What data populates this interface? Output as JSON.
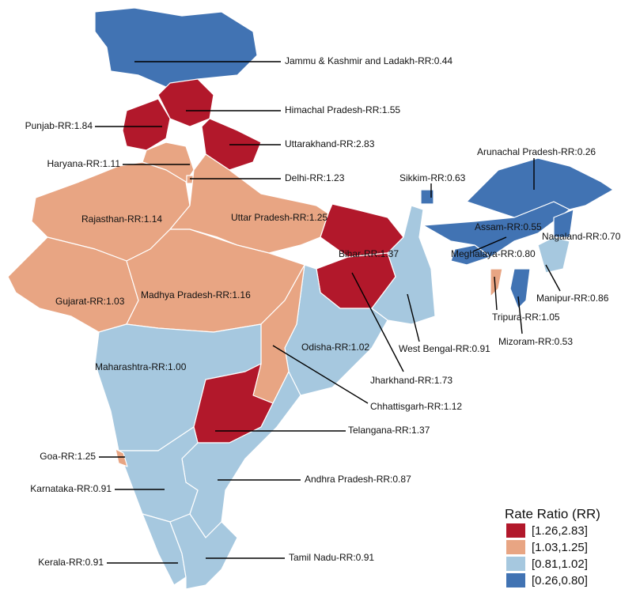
{
  "map": {
    "regions": [
      {
        "label": "Jammu & Kashmir and Ladakh-RR:0.44",
        "color": "#4173b3"
      },
      {
        "label": "Himachal Pradesh-RR:1.55",
        "color": "#b2182b"
      },
      {
        "label": "Punjab-RR:1.84",
        "color": "#b2182b"
      },
      {
        "label": "Uttarakhand-RR:2.83",
        "color": "#b2182b"
      },
      {
        "label": "Haryana-RR:1.11",
        "color": "#e8a583"
      },
      {
        "label": "Delhi-RR:1.23",
        "color": "#e8a583"
      },
      {
        "label": "Rajasthan-RR:1.14",
        "color": "#e8a583"
      },
      {
        "label": "Uttar Pradesh-RR:1.25",
        "color": "#e8a583"
      },
      {
        "label": "Gujarat-RR:1.03",
        "color": "#e8a583"
      },
      {
        "label": "Madhya Pradesh-RR:1.16",
        "color": "#e8a583"
      },
      {
        "label": "Bihar-RR:1.37",
        "color": "#b2182b"
      },
      {
        "label": "Jharkhand-RR:1.73",
        "color": "#b2182b"
      },
      {
        "label": "West Bengal-RR:0.91",
        "color": "#a6c8df"
      },
      {
        "label": "Odisha-RR:1.02",
        "color": "#a6c8df"
      },
      {
        "label": "Chhattisgarh-RR:1.12",
        "color": "#e8a583"
      },
      {
        "label": "Maharashtra-RR:1.00",
        "color": "#a6c8df"
      },
      {
        "label": "Telangana-RR:1.37",
        "color": "#b2182b"
      },
      {
        "label": "Andhra Pradesh-RR:0.87",
        "color": "#a6c8df"
      },
      {
        "label": "Karnataka-RR:0.91",
        "color": "#a6c8df"
      },
      {
        "label": "Goa-RR:1.25",
        "color": "#e8a583"
      },
      {
        "label": "Kerala-RR:0.91",
        "color": "#a6c8df"
      },
      {
        "label": "Tamil Nadu-RR:0.91",
        "color": "#a6c8df"
      },
      {
        "label": "Sikkim-RR:0.63",
        "color": "#4173b3"
      },
      {
        "label": "Assam-RR:0.55",
        "color": "#4173b3"
      },
      {
        "label": "Arunachal Pradesh-RR:0.26",
        "color": "#4173b3"
      },
      {
        "label": "Nagaland-RR:0.70",
        "color": "#4173b3"
      },
      {
        "label": "Meghalaya-RR:0.80",
        "color": "#4173b3"
      },
      {
        "label": "Manipur-RR:0.86",
        "color": "#a6c8df"
      },
      {
        "label": "Mizoram-RR:0.53",
        "color": "#4173b3"
      },
      {
        "label": "Tripura-RR:1.05",
        "color": "#e8a583"
      }
    ],
    "legend": {
      "title": "Rate Ratio (RR)",
      "entries": [
        {
          "label": "[1.26,2.83]",
          "color": "#b2182b"
        },
        {
          "label": "[1.03,1.25]",
          "color": "#e8a583"
        },
        {
          "label": "[0.81,1.02]",
          "color": "#a6c8df"
        },
        {
          "label": "[0.26,0.80]",
          "color": "#4173b3"
        }
      ]
    }
  }
}
